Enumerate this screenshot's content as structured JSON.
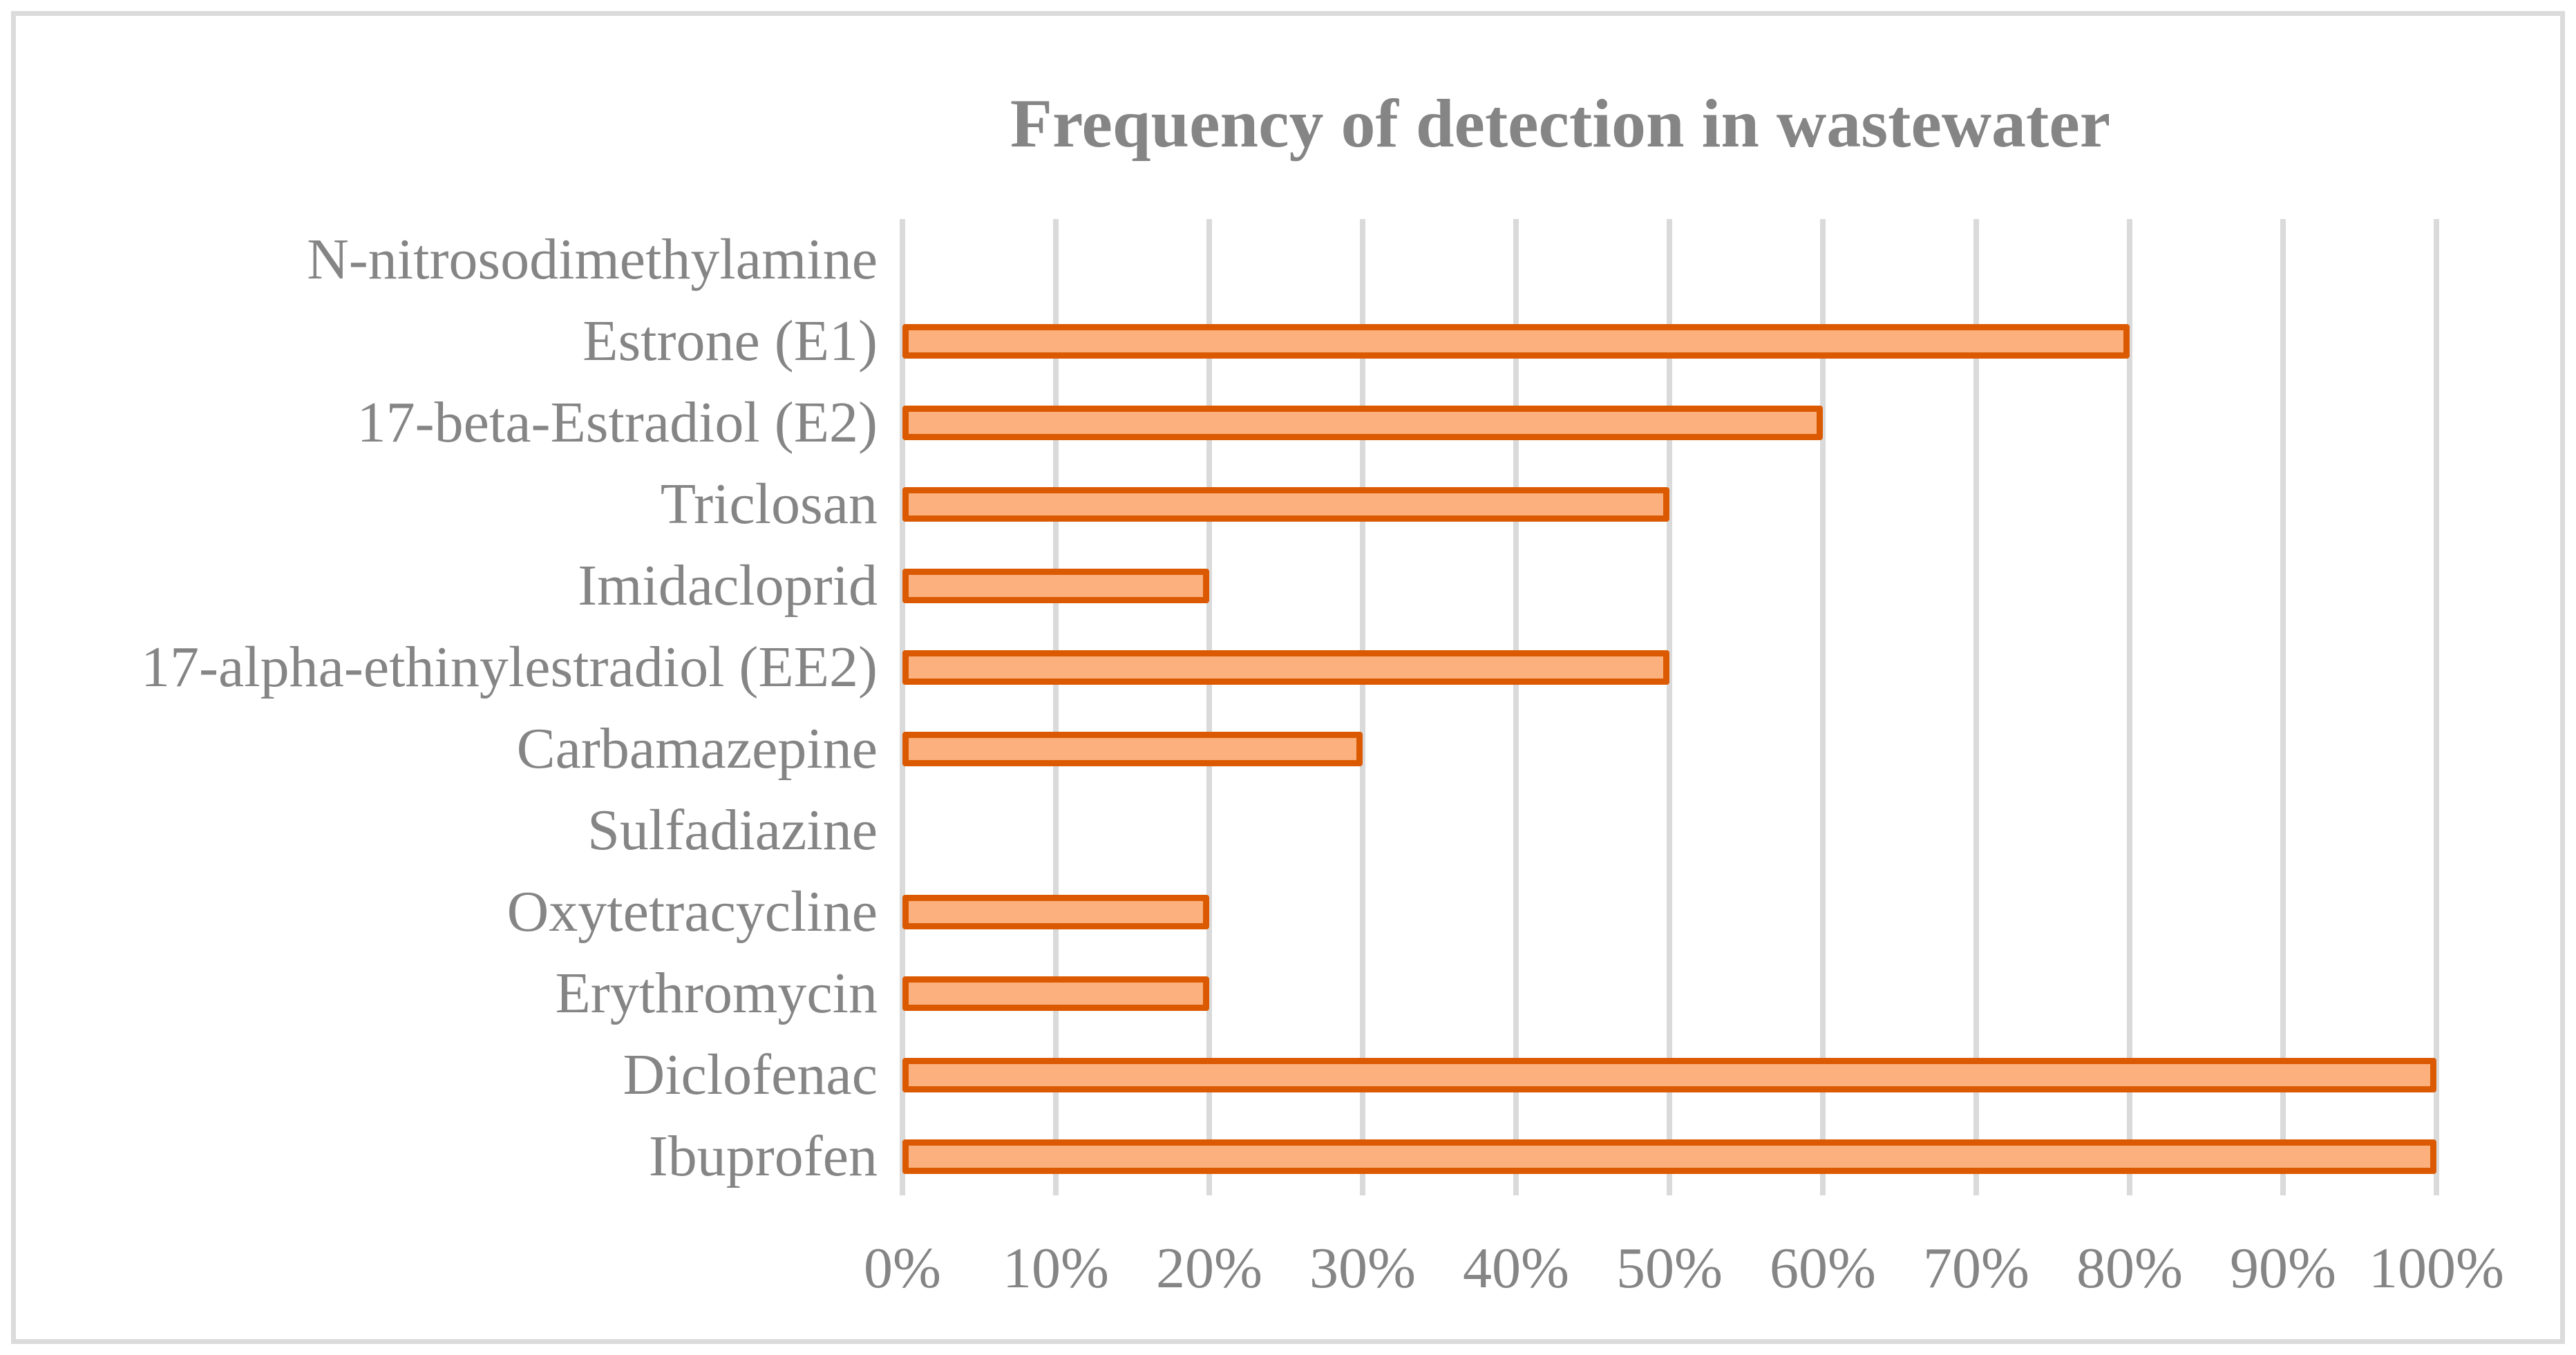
{
  "chart_data": {
    "type": "bar",
    "orientation": "horizontal",
    "title": "Frequency of detection in wastewater",
    "categories": [
      "N-nitrosodimethylamine",
      "Estrone (E1)",
      "17-beta-Estradiol (E2)",
      "Triclosan",
      "Imidacloprid",
      "17-alpha-ethinylestradiol (EE2)",
      "Carbamazepine",
      "Sulfadiazine",
      "Oxytetracycline",
      "Erythromycin",
      "Diclofenac",
      "Ibuprofen"
    ],
    "values_percent": [
      0,
      80,
      60,
      50,
      20,
      50,
      30,
      0,
      20,
      20,
      100,
      100
    ],
    "x_ticks": [
      "0%",
      "10%",
      "20%",
      "30%",
      "40%",
      "50%",
      "60%",
      "70%",
      "80%",
      "90%",
      "100%"
    ],
    "xlim": [
      0,
      100
    ],
    "xlabel": "",
    "ylabel": "",
    "grid": "vertical-gridlines",
    "legend": "none",
    "colors": {
      "bar_fill": "#FBB07D",
      "bar_border": "#DB5A01",
      "gridline": "#DADADA",
      "frame_border": "#DBDBDB",
      "text": "#858585"
    }
  }
}
